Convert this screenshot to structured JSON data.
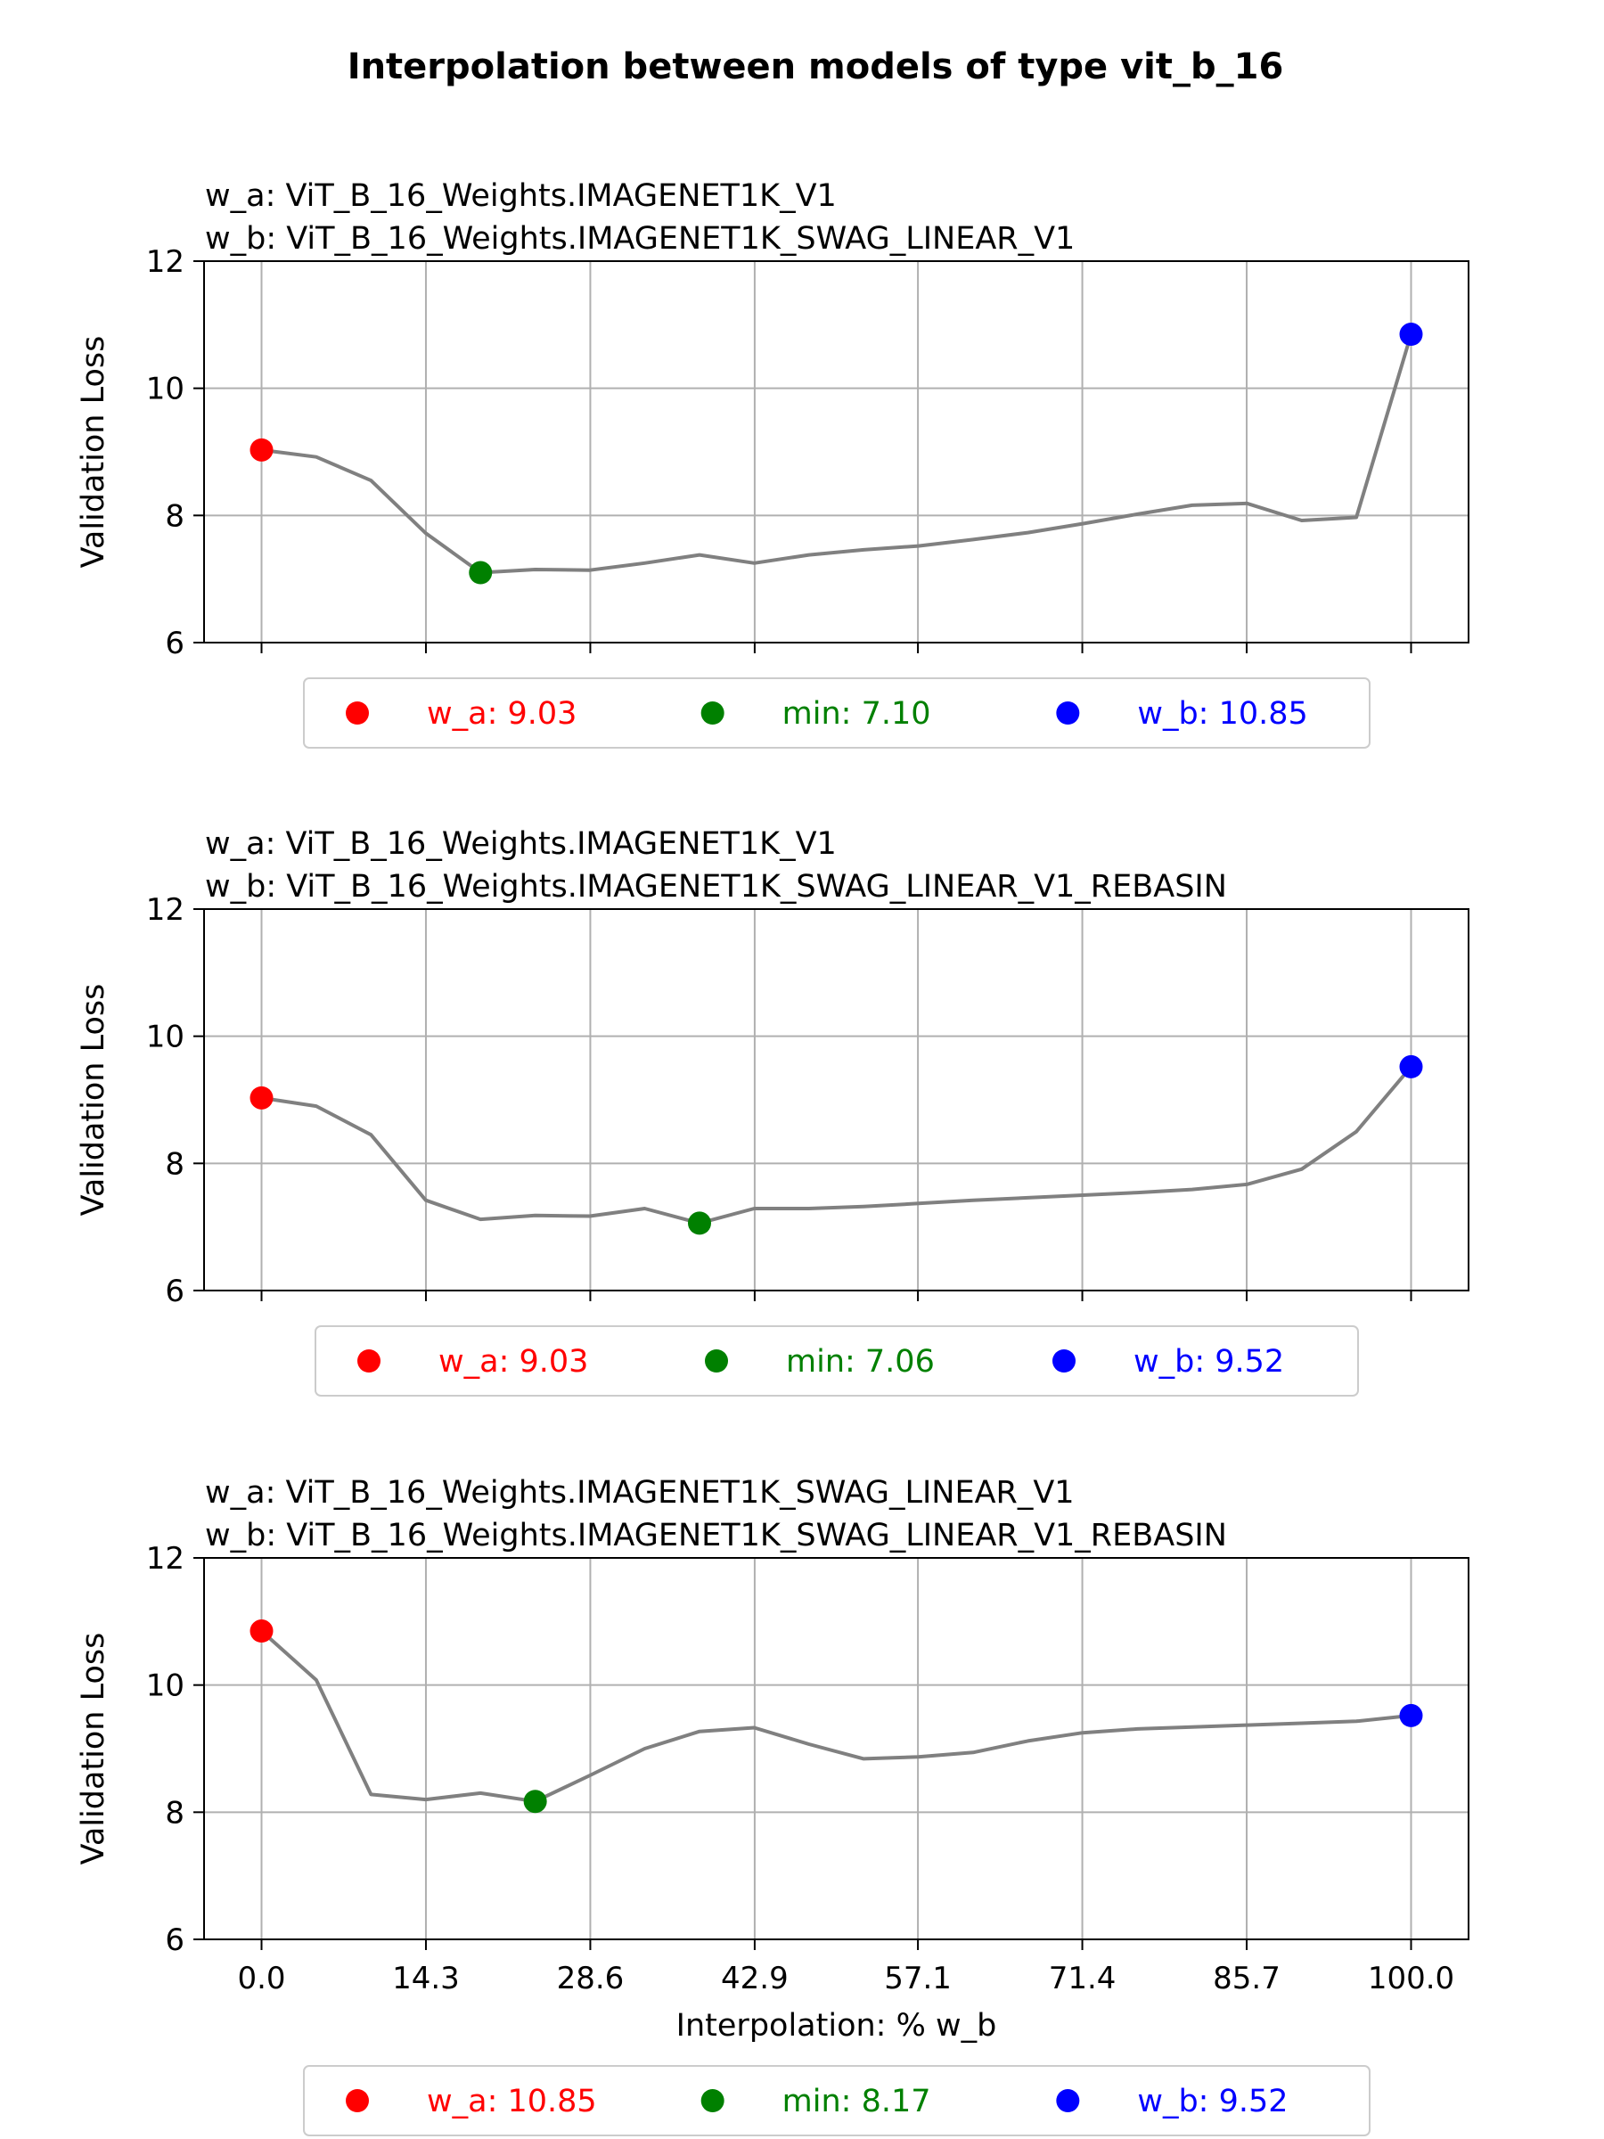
{
  "figure": {
    "title": "Interpolation between models of type vit_b_16"
  },
  "colors": {
    "line": "#808080",
    "w_a": "#ff0000",
    "min": "#008000",
    "w_b": "#0000ff",
    "grid": "#b0b0b0"
  },
  "chart_data": [
    {
      "type": "line",
      "title_lines": [
        "w_a: ViT_B_16_Weights.IMAGENET1K_V1",
        "w_b: ViT_B_16_Weights.IMAGENET1K_SWAG_LINEAR_V1"
      ],
      "ylabel": "Validation Loss",
      "xlabel": "",
      "ylim": [
        6,
        12
      ],
      "yticks": [
        6,
        8,
        10,
        12
      ],
      "xlim": [
        -5,
        105
      ],
      "xticks": [
        0.0,
        14.3,
        28.6,
        42.9,
        57.1,
        71.4,
        85.7,
        100.0
      ],
      "show_xtick_labels": false,
      "grid": true,
      "x": [
        0.0,
        4.76,
        9.52,
        14.29,
        19.05,
        23.81,
        28.57,
        33.33,
        38.1,
        42.86,
        47.62,
        52.38,
        57.14,
        61.9,
        66.67,
        71.43,
        76.19,
        80.95,
        85.71,
        90.48,
        95.24,
        100.0
      ],
      "y": [
        9.03,
        8.92,
        8.55,
        7.72,
        7.1,
        7.15,
        7.14,
        7.25,
        7.38,
        7.25,
        7.38,
        7.46,
        7.52,
        7.62,
        7.73,
        7.87,
        8.02,
        8.16,
        8.19,
        7.92,
        7.97,
        10.85
      ],
      "points": {
        "w_a": {
          "x": 0.0,
          "y": 9.03
        },
        "min": {
          "x": 19.05,
          "y": 7.1
        },
        "w_b": {
          "x": 100.0,
          "y": 10.85
        }
      },
      "legend": [
        {
          "key": "w_a",
          "label": "w_a: 9.03"
        },
        {
          "key": "min",
          "label": "min: 7.10"
        },
        {
          "key": "w_b",
          "label": "w_b: 10.85"
        }
      ],
      "legend_placement": "below"
    },
    {
      "type": "line",
      "title_lines": [
        "w_a: ViT_B_16_Weights.IMAGENET1K_V1",
        "w_b: ViT_B_16_Weights.IMAGENET1K_SWAG_LINEAR_V1_REBASIN"
      ],
      "ylabel": "Validation Loss",
      "xlabel": "",
      "ylim": [
        6,
        12
      ],
      "yticks": [
        6,
        8,
        10,
        12
      ],
      "xlim": [
        -5,
        105
      ],
      "xticks": [
        0.0,
        14.3,
        28.6,
        42.9,
        57.1,
        71.4,
        85.7,
        100.0
      ],
      "show_xtick_labels": false,
      "grid": true,
      "x": [
        0.0,
        4.76,
        9.52,
        14.29,
        19.05,
        23.81,
        28.57,
        33.33,
        38.1,
        42.86,
        47.62,
        52.38,
        57.14,
        61.9,
        66.67,
        71.43,
        76.19,
        80.95,
        85.71,
        90.48,
        95.24,
        100.0
      ],
      "y": [
        9.03,
        8.9,
        8.45,
        7.42,
        7.12,
        7.18,
        7.17,
        7.29,
        7.06,
        7.29,
        7.29,
        7.32,
        7.37,
        7.42,
        7.46,
        7.5,
        7.54,
        7.59,
        7.67,
        7.91,
        8.5,
        9.52
      ],
      "points": {
        "w_a": {
          "x": 0.0,
          "y": 9.03
        },
        "min": {
          "x": 38.1,
          "y": 7.06
        },
        "w_b": {
          "x": 100.0,
          "y": 9.52
        }
      },
      "legend": [
        {
          "key": "w_a",
          "label": "w_a: 9.03"
        },
        {
          "key": "min",
          "label": "min: 7.06"
        },
        {
          "key": "w_b",
          "label": "w_b: 9.52"
        }
      ],
      "legend_placement": "below"
    },
    {
      "type": "line",
      "title_lines": [
        "w_a: ViT_B_16_Weights.IMAGENET1K_SWAG_LINEAR_V1",
        "w_b: ViT_B_16_Weights.IMAGENET1K_SWAG_LINEAR_V1_REBASIN"
      ],
      "ylabel": "Validation Loss",
      "xlabel": "Interpolation: % w_b",
      "ylim": [
        6,
        12
      ],
      "yticks": [
        6,
        8,
        10,
        12
      ],
      "xlim": [
        -5,
        105
      ],
      "xticks": [
        0.0,
        14.3,
        28.6,
        42.9,
        57.1,
        71.4,
        85.7,
        100.0
      ],
      "xtick_labels": [
        "0.0",
        "14.3",
        "28.6",
        "42.9",
        "57.1",
        "71.4",
        "85.7",
        "100.0"
      ],
      "show_xtick_labels": true,
      "grid": true,
      "x": [
        0.0,
        4.76,
        9.52,
        14.29,
        19.05,
        23.81,
        28.57,
        33.33,
        38.1,
        42.86,
        47.62,
        52.38,
        57.14,
        61.9,
        66.67,
        71.43,
        76.19,
        80.95,
        85.71,
        90.48,
        95.24,
        100.0
      ],
      "y": [
        10.85,
        10.08,
        8.28,
        8.2,
        8.3,
        8.17,
        8.58,
        9.0,
        9.27,
        9.33,
        9.07,
        8.84,
        8.87,
        8.94,
        9.12,
        9.25,
        9.31,
        9.34,
        9.37,
        9.4,
        9.43,
        9.52
      ],
      "points": {
        "w_a": {
          "x": 0.0,
          "y": 10.85
        },
        "min": {
          "x": 23.81,
          "y": 8.17
        },
        "w_b": {
          "x": 100.0,
          "y": 9.52
        }
      },
      "legend": [
        {
          "key": "w_a",
          "label": "w_a: 10.85"
        },
        {
          "key": "min",
          "label": "min: 8.17"
        },
        {
          "key": "w_b",
          "label": "w_b: 9.52"
        }
      ],
      "legend_placement": "below"
    }
  ]
}
